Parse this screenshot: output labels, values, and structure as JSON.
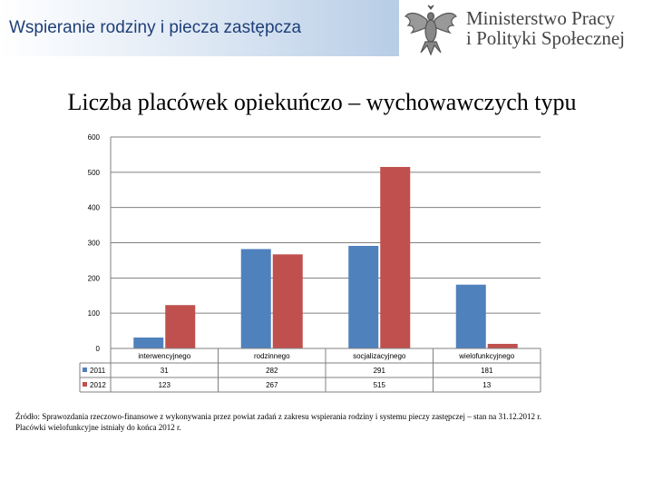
{
  "header": {
    "title": "Wspieranie rodziny i piecza zastępcza",
    "logo_line1": "Ministerstwo Pracy",
    "logo_line2": "i Polityki Społecznej",
    "logo_icon": "eagle-emblem-icon"
  },
  "colors": {
    "series_2011": "#4f81bd",
    "series_2012": "#c0504d",
    "grid": "#808080"
  },
  "chart_data": {
    "type": "bar",
    "title": "Liczba placówek opiekuńczo – wychowawczych typu",
    "categories": [
      "interwencyjnego",
      "rodzinnego",
      "socjalizacyjnego",
      "wielofunkcyjnego"
    ],
    "series": [
      {
        "name": "2011",
        "values": [
          31,
          282,
          291,
          181
        ],
        "labels": [
          "31",
          "282",
          "291",
          "181"
        ]
      },
      {
        "name": "2012",
        "values": [
          123,
          267,
          515,
          13
        ],
        "labels": [
          "123",
          "267",
          "515",
          "13"
        ]
      }
    ],
    "ylim": [
      0,
      600
    ],
    "yticks": [
      "0",
      "100",
      "200",
      "300",
      "400",
      "500",
      "600"
    ],
    "grid": true,
    "legend": "data-table"
  },
  "footnote": {
    "line1": "Źródło: Sprawozdania rzeczowo-finansowe z wykonywania przez powiat zadań z zakresu wspierania rodziny i systemu pieczy zastępczej – stan na 31.12.2012 r.",
    "line2": "Placówki wielofunkcyjne istniały do końca 2012 r."
  }
}
